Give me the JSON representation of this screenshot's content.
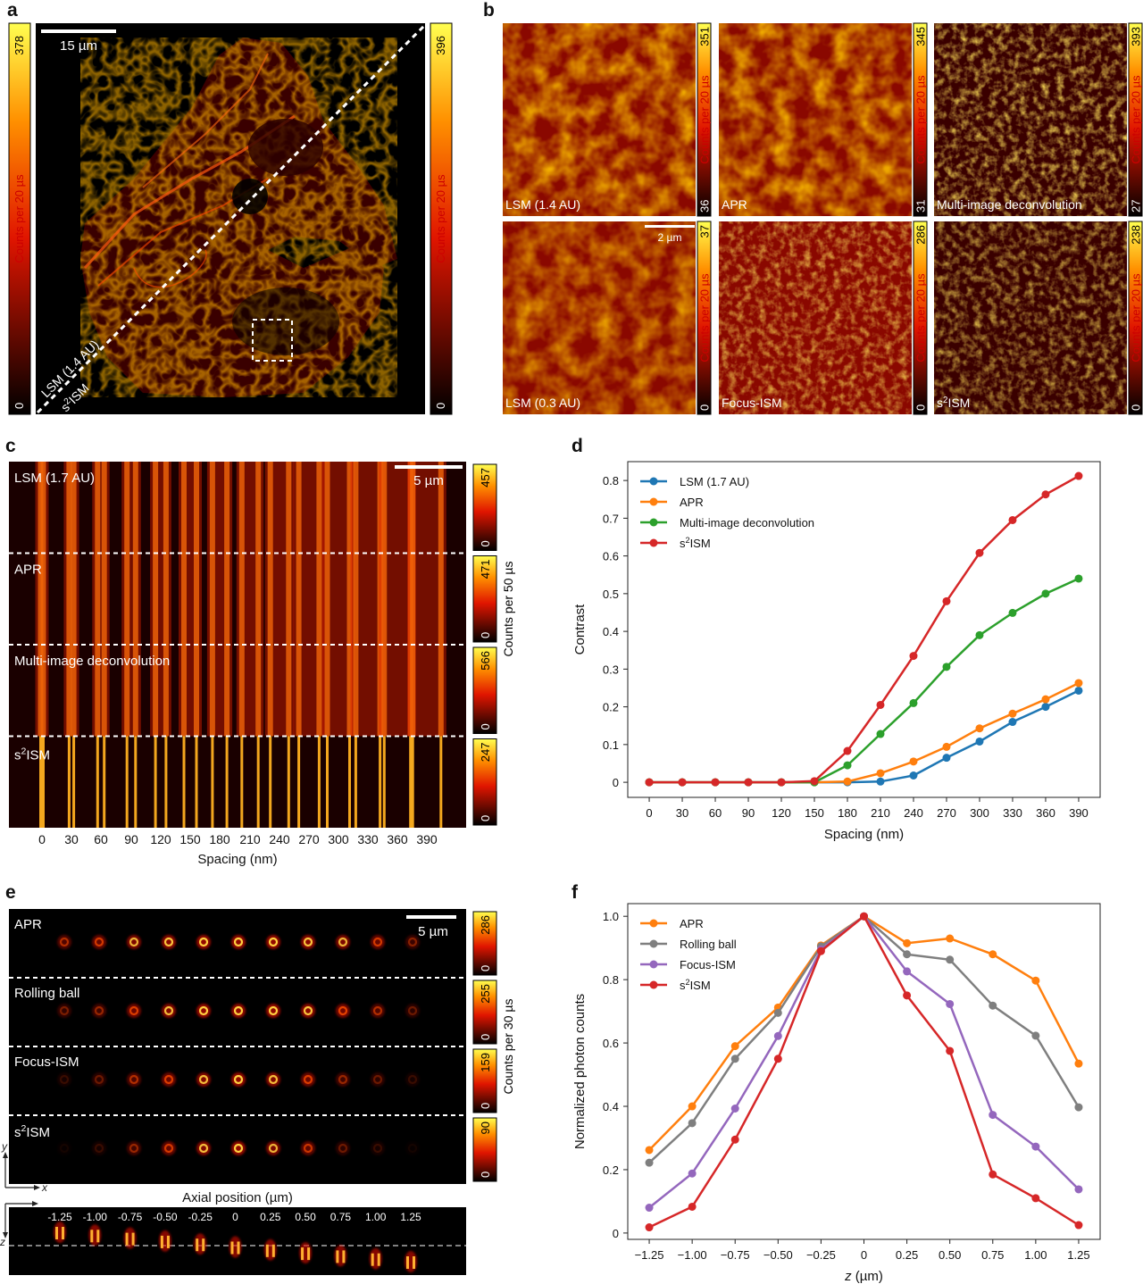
{
  "panel_letters": {
    "a": "a",
    "b": "b",
    "c": "c",
    "d": "d",
    "e": "e",
    "f": "f"
  },
  "colorbar_title": "Counts per 20 µs",
  "colors": {
    "lsm": "#1f77b4",
    "apr": "#ff7f0e",
    "deconv": "#2ca02c",
    "s2ism": "#d62728",
    "rolling": "#7f7f7f",
    "focus": "#9467bd",
    "hot_low": "#000000",
    "hot_mid": "#e41a00",
    "hot_high": "#ffff40"
  },
  "panel_a": {
    "scalebar": "15 µm",
    "diag_top": "LSM (1.4 AU)",
    "diag_bottom_base": "s",
    "diag_bottom_sup": "2",
    "diag_bottom_rest": "ISM",
    "cbar_left": {
      "max": "378",
      "min": "0"
    },
    "cbar_right": {
      "max": "396",
      "min": "0"
    }
  },
  "panel_b": {
    "scalebar": "2 µm",
    "tiles": [
      {
        "label": "LSM (1.4 AU)",
        "max": "351",
        "min": "36"
      },
      {
        "label": "APR",
        "max": "345",
        "min": "31"
      },
      {
        "label": "Multi-image deconvolution",
        "max": "393",
        "min": "27"
      },
      {
        "label": "LSM (0.3 AU)",
        "max": "37",
        "min": "0"
      },
      {
        "label": "Focus-ISM",
        "max": "286",
        "min": "0"
      },
      {
        "label_base": "s",
        "label_sup": "2",
        "label_rest": "ISM",
        "max": "238",
        "min": "0"
      }
    ]
  },
  "panel_c": {
    "scalebar": "5 µm",
    "cbar_title": "Counts per 50 µs",
    "rows": [
      {
        "label": "LSM (1.7 AU)",
        "max": "457",
        "min": "0"
      },
      {
        "label": "APR",
        "max": "471",
        "min": "0"
      },
      {
        "label": "Multi-image deconvolution",
        "max": "566",
        "min": "0"
      },
      {
        "label_base": "s",
        "label_sup": "2",
        "label_rest": "ISM",
        "max": "247",
        "min": "0"
      }
    ],
    "xticks": [
      "0",
      "30",
      "60",
      "90",
      "120",
      "150",
      "180",
      "210",
      "240",
      "270",
      "300",
      "330",
      "360",
      "390"
    ],
    "xlabel": "Spacing (nm)"
  },
  "panel_e": {
    "scalebar": "5 µm",
    "cbar_title": "Counts per 30 µs",
    "rows": [
      {
        "label": "APR",
        "max": "286",
        "min": "0"
      },
      {
        "label": "Rolling ball",
        "max": "255",
        "min": "0"
      },
      {
        "label": "Focus-ISM",
        "max": "159",
        "min": "0"
      },
      {
        "label_base": "s",
        "label_sup": "2",
        "label_rest": "ISM",
        "max": "90",
        "min": "0"
      }
    ],
    "axis_title": "Axial position (µm)",
    "axial_ticks": [
      "-1.25",
      "-1.00",
      "-0.75",
      "-0.50",
      "-0.25",
      "0",
      "0.25",
      "0.50",
      "0.75",
      "1.00",
      "1.25"
    ],
    "axes": {
      "y": "y",
      "x": "x",
      "z": "z"
    }
  },
  "chart_data": [
    {
      "type": "line",
      "panel": "d",
      "x": [
        0,
        30,
        60,
        90,
        120,
        150,
        180,
        210,
        240,
        270,
        300,
        330,
        360,
        390
      ],
      "series": [
        {
          "name": "LSM (1.7 AU)",
          "color": "#1f77b4",
          "values": [
            0,
            0,
            0,
            0,
            0,
            0,
            0,
            0.002,
            0.018,
            0.065,
            0.108,
            0.16,
            0.2,
            0.243
          ]
        },
        {
          "name": "APR",
          "color": "#ff7f0e",
          "values": [
            0,
            0,
            0,
            0,
            0,
            0,
            0.002,
            0.024,
            0.055,
            0.094,
            0.143,
            0.182,
            0.22,
            0.263
          ]
        },
        {
          "name": "Multi-image deconvolution",
          "color": "#2ca02c",
          "values": [
            0,
            0,
            0,
            0,
            0,
            0,
            0.045,
            0.128,
            0.21,
            0.306,
            0.39,
            0.449,
            0.5,
            0.54
          ]
        },
        {
          "name_base": "s",
          "name_sup": "2",
          "name_rest": "ISM",
          "color": "#d62728",
          "values": [
            0,
            0,
            0,
            0,
            0,
            0.003,
            0.083,
            0.205,
            0.335,
            0.48,
            0.608,
            0.695,
            0.763,
            0.812
          ]
        }
      ],
      "xticks": [
        "0",
        "30",
        "60",
        "90",
        "120",
        "150",
        "180",
        "210",
        "240",
        "270",
        "300",
        "330",
        "360",
        "390"
      ],
      "yticks": [
        "0",
        "0.1",
        "0.2",
        "0.3",
        "0.4",
        "0.5",
        "0.6",
        "0.7",
        "0.8"
      ],
      "xlabel": "Spacing (nm)",
      "ylabel": "Contrast",
      "xlim": [
        -19.5,
        409.5
      ],
      "ylim": [
        -0.04,
        0.85
      ],
      "legend": "top-left"
    },
    {
      "type": "line",
      "panel": "f",
      "x": [
        -1.25,
        -1.0,
        -0.75,
        -0.5,
        -0.25,
        0,
        0.25,
        0.5,
        0.75,
        1.0,
        1.25
      ],
      "series": [
        {
          "name": "APR",
          "color": "#ff7f0e",
          "values": [
            0.262,
            0.4,
            0.59,
            0.712,
            0.908,
            1.0,
            0.915,
            0.93,
            0.88,
            0.797,
            0.535
          ]
        },
        {
          "name": "Rolling ball",
          "color": "#7f7f7f",
          "values": [
            0.222,
            0.347,
            0.55,
            0.695,
            0.905,
            1.0,
            0.88,
            0.863,
            0.718,
            0.623,
            0.397
          ]
        },
        {
          "name": "Focus-ISM",
          "color": "#9467bd",
          "values": [
            0.08,
            0.188,
            0.393,
            0.622,
            0.895,
            1.0,
            0.826,
            0.723,
            0.373,
            0.273,
            0.138
          ]
        },
        {
          "name_base": "s",
          "name_sup": "2",
          "name_rest": "ISM",
          "color": "#d62728",
          "values": [
            0.018,
            0.083,
            0.295,
            0.55,
            0.89,
            1.0,
            0.75,
            0.575,
            0.185,
            0.11,
            0.025
          ]
        }
      ],
      "xticks": [
        "−1.25",
        "−1.00",
        "−0.75",
        "−0.50",
        "−0.25",
        "0",
        "0.25",
        "0.50",
        "0.75",
        "1.00",
        "1.25"
      ],
      "yticks": [
        "0",
        "0.2",
        "0.4",
        "0.6",
        "0.8",
        "1.0"
      ],
      "xlabel_italic": "z",
      "xlabel_rest": " (µm)",
      "ylabel": "Normalized photon counts",
      "xlim": [
        -1.375,
        1.375
      ],
      "ylim": [
        -0.02,
        1.04
      ],
      "legend": "top-left"
    }
  ]
}
